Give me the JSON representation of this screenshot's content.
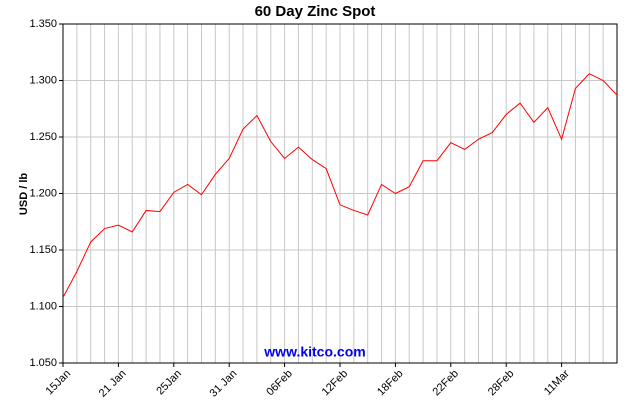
{
  "chart_data": {
    "type": "line",
    "title": "60 Day Zinc Spot",
    "y_label": "USD / lb",
    "watermark": "www.kitco.com",
    "color": "#ff0000",
    "grid": true,
    "categories": [
      "15Jan",
      null,
      null,
      null,
      "21 Jan",
      null,
      null,
      null,
      "25Jan",
      null,
      null,
      null,
      "31 Jan",
      null,
      null,
      null,
      "06Feb",
      null,
      null,
      null,
      "12Feb",
      null,
      null,
      null,
      "18Feb",
      null,
      null,
      null,
      "22Feb",
      null,
      null,
      null,
      "28Feb",
      null,
      null,
      null,
      "11Mar",
      null,
      null,
      null,
      null
    ],
    "values": [
      1.108,
      1.131,
      1.157,
      1.169,
      1.172,
      1.166,
      1.185,
      1.184,
      1.201,
      1.208,
      1.199,
      1.217,
      1.231,
      1.257,
      1.269,
      1.246,
      1.231,
      1.241,
      1.23,
      1.222,
      1.19,
      1.185,
      1.181,
      1.208,
      1.2,
      1.206,
      1.229,
      1.229,
      1.245,
      1.239,
      1.248,
      1.254,
      1.27,
      1.28,
      1.263,
      1.276,
      1.248,
      1.293,
      1.306,
      1.3,
      1.287
    ],
    "ylim": [
      1.05,
      1.35
    ],
    "yticks": [
      {
        "value": 1.05,
        "label": "1.050"
      },
      {
        "value": 1.1,
        "label": "1.100"
      },
      {
        "value": 1.15,
        "label": "1.150"
      },
      {
        "value": 1.2,
        "label": "1.200"
      },
      {
        "value": 1.25,
        "label": "1.250"
      },
      {
        "value": 1.3,
        "label": "1.300"
      },
      {
        "value": 1.35,
        "label": "1.350"
      }
    ]
  }
}
